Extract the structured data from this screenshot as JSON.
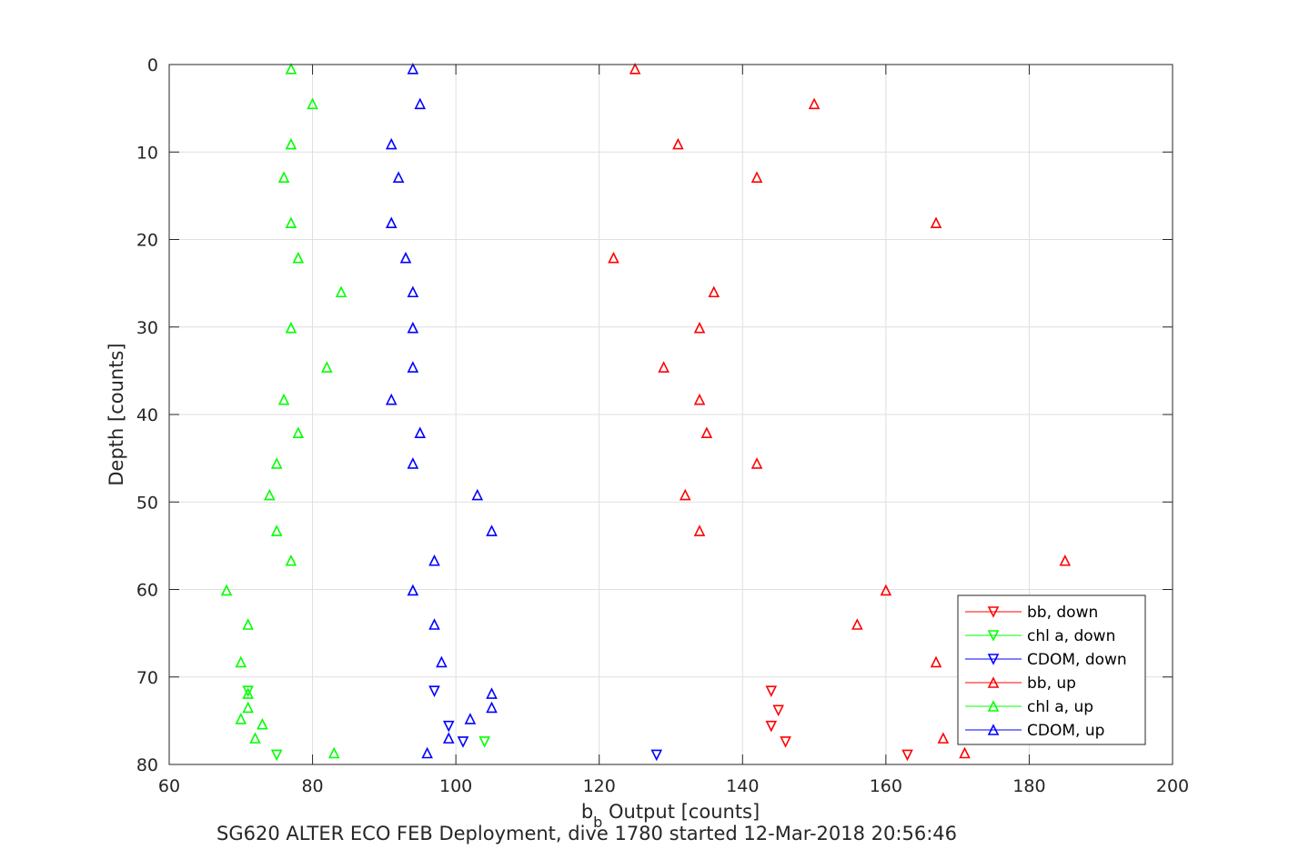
{
  "chart_data": {
    "type": "scatter",
    "title": "",
    "xlabel_main": "b",
    "xlabel_sub": "b",
    "xlabel_rest": " Output [counts]",
    "ylabel": "Depth [counts]",
    "caption": "SG620 ALTER ECO FEB Deployment, dive 1780 started 12-Mar-2018 20:56:46",
    "xlim": [
      60,
      200
    ],
    "ylim": [
      0,
      80
    ],
    "y_reversed": true,
    "grid": true,
    "legend_position": "bottom-right",
    "xticks": [
      60,
      80,
      100,
      120,
      140,
      160,
      180,
      200
    ],
    "xtick_labels": [
      "60",
      "80",
      "100",
      "120",
      "140",
      "160",
      "180",
      "200"
    ],
    "yticks": [
      0,
      10,
      20,
      30,
      40,
      50,
      60,
      70,
      80
    ],
    "ytick_labels": [
      "0",
      "10",
      "20",
      "30",
      "40",
      "50",
      "60",
      "70",
      "80"
    ],
    "series": [
      {
        "name": "bb, down",
        "color": "#ff0000",
        "marker": "triangle-down",
        "points": [
          [
            144,
            71.6
          ],
          [
            145,
            73.8
          ],
          [
            144,
            75.6
          ],
          [
            146,
            77.4
          ],
          [
            163,
            78.9
          ]
        ]
      },
      {
        "name": "chl a, down",
        "color": "#00ff00",
        "marker": "triangle-down",
        "points": [
          [
            71,
            71.6
          ],
          [
            104,
            77.4
          ],
          [
            75,
            78.9
          ]
        ]
      },
      {
        "name": "CDOM, down",
        "color": "#0000ff",
        "marker": "triangle-down",
        "points": [
          [
            97,
            71.6
          ],
          [
            99,
            75.6
          ],
          [
            101,
            77.4
          ],
          [
            128,
            78.9
          ]
        ]
      },
      {
        "name": "bb, up",
        "color": "#ff0000",
        "marker": "triangle-up",
        "points": [
          [
            125,
            0.5
          ],
          [
            150,
            4.5
          ],
          [
            131,
            9.1
          ],
          [
            142,
            12.9
          ],
          [
            167,
            18.1
          ],
          [
            122,
            22.1
          ],
          [
            136,
            26.0
          ],
          [
            134,
            30.1
          ],
          [
            129,
            34.6
          ],
          [
            134,
            38.3
          ],
          [
            135,
            42.1
          ],
          [
            142,
            45.6
          ],
          [
            132,
            49.2
          ],
          [
            134,
            53.3
          ],
          [
            185,
            56.7
          ],
          [
            160,
            60.1
          ],
          [
            156,
            64.0
          ],
          [
            167,
            68.3
          ],
          [
            168,
            77.0
          ],
          [
            171,
            78.7
          ]
        ]
      },
      {
        "name": "chl a, up",
        "color": "#00ff00",
        "marker": "triangle-up",
        "points": [
          [
            77,
            0.5
          ],
          [
            80,
            4.5
          ],
          [
            77,
            9.1
          ],
          [
            76,
            12.9
          ],
          [
            77,
            18.1
          ],
          [
            78,
            22.1
          ],
          [
            84,
            26.0
          ],
          [
            77,
            30.1
          ],
          [
            82,
            34.6
          ],
          [
            76,
            38.3
          ],
          [
            78,
            42.1
          ],
          [
            75,
            45.6
          ],
          [
            74,
            49.2
          ],
          [
            75,
            53.3
          ],
          [
            77,
            56.7
          ],
          [
            68,
            60.1
          ],
          [
            71,
            64.0
          ],
          [
            70,
            68.3
          ],
          [
            71,
            71.9
          ],
          [
            71,
            73.5
          ],
          [
            70,
            74.8
          ],
          [
            73,
            75.4
          ],
          [
            72,
            77.0
          ],
          [
            83,
            78.7
          ]
        ]
      },
      {
        "name": "CDOM, up",
        "color": "#0000ff",
        "marker": "triangle-up",
        "points": [
          [
            94,
            0.5
          ],
          [
            95,
            4.5
          ],
          [
            91,
            9.1
          ],
          [
            92,
            12.9
          ],
          [
            91,
            18.1
          ],
          [
            93,
            22.1
          ],
          [
            94,
            26.0
          ],
          [
            94,
            30.1
          ],
          [
            94,
            34.6
          ],
          [
            91,
            38.3
          ],
          [
            95,
            42.1
          ],
          [
            94,
            45.6
          ],
          [
            103,
            49.2
          ],
          [
            105,
            53.3
          ],
          [
            97,
            56.7
          ],
          [
            94,
            60.1
          ],
          [
            97,
            64.0
          ],
          [
            98,
            68.3
          ],
          [
            105,
            71.9
          ],
          [
            105,
            73.5
          ],
          [
            102,
            74.8
          ],
          [
            99,
            77.0
          ],
          [
            96,
            78.7
          ]
        ]
      }
    ]
  }
}
